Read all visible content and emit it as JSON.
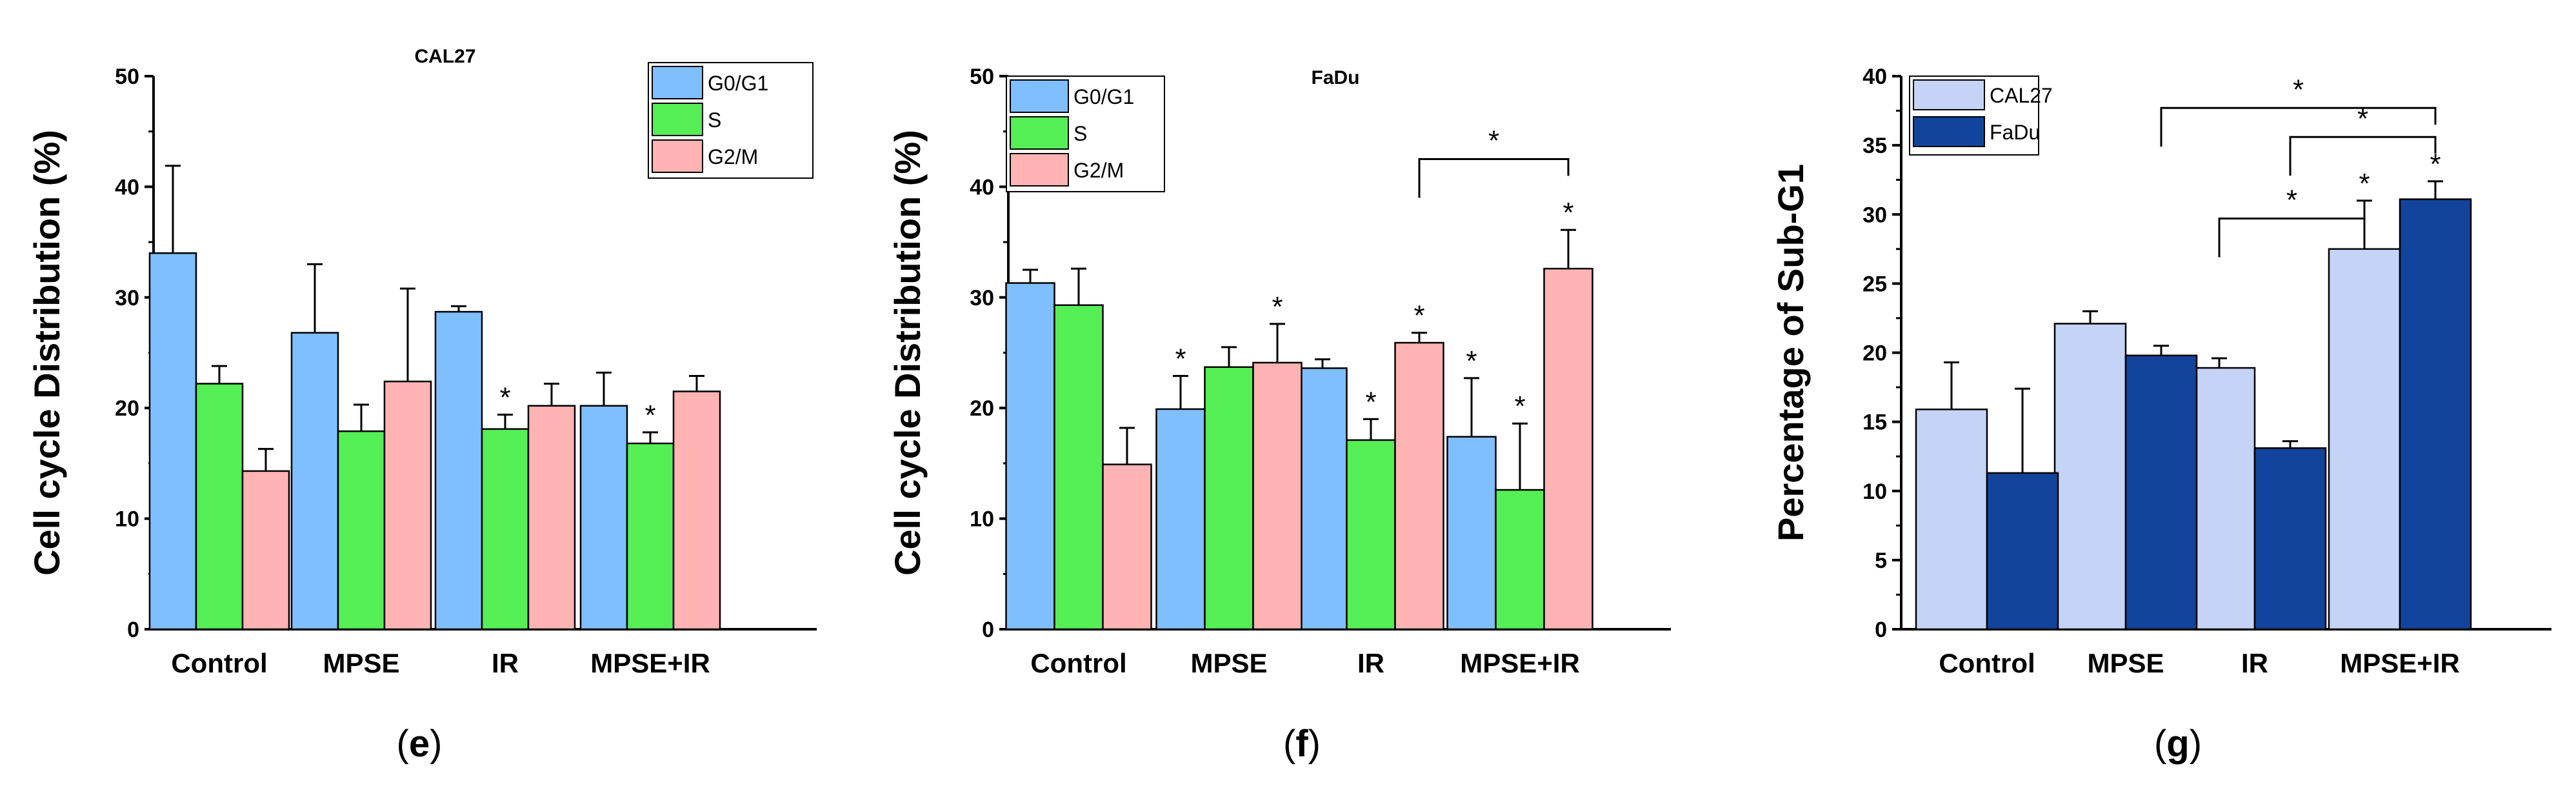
{
  "colors": {
    "g0g1": "#80bfff",
    "s": "#55ee55",
    "g2m": "#ffb3b3",
    "cal27": "#c5d3f7",
    "fadu": "#12449c"
  },
  "chart_data": [
    {
      "type": "bar",
      "panel": "(e)",
      "panel_letter": "e",
      "title": "CAL27",
      "xlabel": "",
      "ylabel": "Cell cycle Distribution (%)",
      "ylim": [
        0,
        50
      ],
      "yticks": [
        "0",
        "10",
        "20",
        "30",
        "40",
        "50"
      ],
      "categories": [
        "Control",
        "MPSE",
        "IR",
        "MPSE+IR"
      ],
      "legend_position": "top-right",
      "series": [
        {
          "name": "G0/G1",
          "color_key": "g0g1",
          "values": [
            34.0,
            26.8,
            28.7,
            20.2
          ],
          "errors": [
            7.9,
            6.2,
            0.5,
            3.0
          ],
          "significance": [
            "",
            "",
            "",
            ""
          ]
        },
        {
          "name": "S",
          "color_key": "s",
          "values": [
            22.2,
            17.9,
            18.1,
            16.8
          ],
          "errors": [
            1.6,
            2.4,
            1.3,
            1.0
          ],
          "significance": [
            "",
            "",
            "*",
            "*"
          ]
        },
        {
          "name": "G2/M",
          "color_key": "g2m",
          "values": [
            14.3,
            22.4,
            20.2,
            21.5
          ],
          "errors": [
            2.0,
            8.4,
            2.0,
            1.4
          ],
          "significance": [
            "",
            "",
            "",
            ""
          ]
        }
      ],
      "brackets": []
    },
    {
      "type": "bar",
      "panel": "(f)",
      "panel_letter": "f",
      "title": "FaDu",
      "xlabel": "",
      "ylabel": "Cell cycle Distribution (%)",
      "ylim": [
        0,
        50
      ],
      "yticks": [
        "0",
        "10",
        "20",
        "30",
        "40",
        "50"
      ],
      "categories": [
        "Control",
        "MPSE",
        "IR",
        "MPSE+IR"
      ],
      "legend_position": "top-left",
      "series": [
        {
          "name": "G0/G1",
          "color_key": "g0g1",
          "values": [
            31.3,
            19.9,
            23.6,
            17.4
          ],
          "errors": [
            1.2,
            3.0,
            0.8,
            5.3
          ],
          "significance": [
            "",
            "*",
            "",
            "*"
          ]
        },
        {
          "name": "S",
          "color_key": "s",
          "values": [
            29.3,
            23.7,
            17.1,
            12.6
          ],
          "errors": [
            3.3,
            1.8,
            1.9,
            6.0
          ],
          "significance": [
            "",
            "",
            "*",
            "*"
          ]
        },
        {
          "name": "G2/M",
          "color_key": "g2m",
          "values": [
            14.9,
            24.1,
            25.9,
            32.6
          ],
          "errors": [
            3.3,
            3.5,
            0.9,
            3.5
          ],
          "significance": [
            "",
            "*",
            "*",
            "*"
          ]
        }
      ],
      "brackets": [
        {
          "from_category": 2,
          "from_series": 2,
          "to_category": 3,
          "to_series": 2,
          "y": 42.5,
          "label": "*"
        }
      ]
    },
    {
      "type": "bar",
      "panel": "(g)",
      "panel_letter": "g",
      "title": "",
      "xlabel": "",
      "ylabel": "Percentage of Sub-G1",
      "ylim": [
        0,
        40
      ],
      "yticks": [
        "0",
        "5",
        "10",
        "15",
        "20",
        "25",
        "30",
        "35",
        "40"
      ],
      "categories": [
        "Control",
        "MPSE",
        "IR",
        "MPSE+IR"
      ],
      "legend_position": "top-left",
      "series": [
        {
          "name": "CAL27",
          "color_key": "cal27",
          "values": [
            15.9,
            22.1,
            18.9,
            27.5
          ],
          "errors": [
            3.4,
            0.9,
            0.7,
            3.5
          ],
          "significance": [
            "",
            "",
            "",
            "*"
          ]
        },
        {
          "name": "FaDu",
          "color_key": "fadu",
          "values": [
            11.3,
            19.8,
            13.1,
            31.1
          ],
          "errors": [
            6.1,
            0.7,
            0.5,
            1.3
          ],
          "significance": [
            "",
            "",
            "",
            "*"
          ]
        }
      ],
      "brackets": [
        {
          "from_category": 1,
          "from_series": 1,
          "to_category": 3,
          "to_series": 1,
          "y": 37.7,
          "label": "*"
        },
        {
          "from_category": 2,
          "from_series": 1,
          "to_category": 3,
          "to_series": 1,
          "y": 35.6,
          "label": "*"
        },
        {
          "from_category": 2,
          "from_series": 0,
          "to_category": 3,
          "to_series": 0,
          "y": 29.7,
          "label": "*"
        }
      ]
    }
  ]
}
